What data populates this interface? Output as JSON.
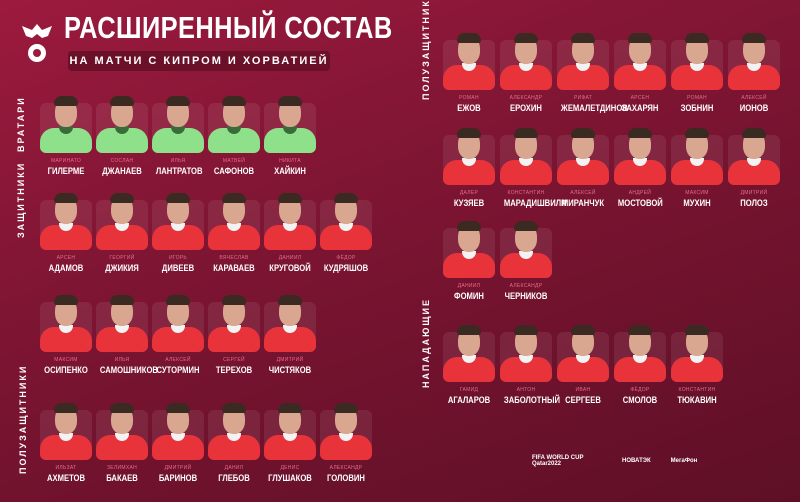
{
  "header": {
    "title": "РАСШИРЕННЫЙ СОСТАВ",
    "subtitle": "НА МАТЧИ С КИПРОМ И ХОРВАТИЕЙ"
  },
  "sections": {
    "goalkeepers": "ВРАТАРИ",
    "defenders": "ЗАЩИТНИКИ",
    "midfielders": "ПОЛУЗАЩИТНИКИ",
    "forwards": "НАПАДАЮЩИЕ"
  },
  "goalkeepers": [
    [
      "МАРИНАТО",
      "ГИЛЕРМЕ"
    ],
    [
      "СОСЛАН",
      "ДЖАНАЕВ"
    ],
    [
      "ИЛЬЯ",
      "ЛАНТРАТОВ"
    ],
    [
      "МАТВЕЙ",
      "САФОНОВ"
    ],
    [
      "НИКИТА",
      "ХАЙКИН"
    ]
  ],
  "defenders": [
    [
      "АРСЕН",
      "АДАМОВ"
    ],
    [
      "ГЕОРГИЙ",
      "ДЖИКИЯ"
    ],
    [
      "ИГОРЬ",
      "ДИВЕЕВ"
    ],
    [
      "ВЯЧЕСЛАВ",
      "КАРАВАЕВ"
    ],
    [
      "ДАНИИЛ",
      "КРУГОВОЙ"
    ],
    [
      "ФЁДОР",
      "КУДРЯШОВ"
    ],
    [
      "МАКСИМ",
      "ОСИПЕНКО"
    ],
    [
      "ИЛЬЯ",
      "САМОШНИКОВ"
    ],
    [
      "АЛЕКСЕЙ",
      "СУТОРМИН"
    ],
    [
      "СЕРГЕЙ",
      "ТЕРЕХОВ"
    ],
    [
      "ДМИТРИЙ",
      "ЧИСТЯКОВ"
    ]
  ],
  "midfielders_left": [
    [
      "ИЛЬЗАТ",
      "АХМЕТОВ"
    ],
    [
      "ЗЕЛИМХАН",
      "БАКАЕВ"
    ],
    [
      "ДМИТРИЙ",
      "БАРИНОВ"
    ],
    [
      "ДАНИЛ",
      "ГЛЕБОВ"
    ],
    [
      "ДЕНИС",
      "ГЛУШАКОВ"
    ],
    [
      "АЛЕКСАНДР",
      "ГОЛОВИН"
    ]
  ],
  "midfielders_right": [
    [
      "РОМАН",
      "ЕЖОВ"
    ],
    [
      "АЛЕКСАНДР",
      "ЕРОХИН"
    ],
    [
      "РИФАТ",
      "ЖЕМАЛЕТДИНОВ"
    ],
    [
      "АРСЕН",
      "ЗАХАРЯН"
    ],
    [
      "РОМАН",
      "ЗОБНИН"
    ],
    [
      "АЛЕКСЕЙ",
      "ИОНОВ"
    ],
    [
      "ДАЛЕР",
      "КУЗЯЕВ"
    ],
    [
      "КОНСТАНТИН",
      "МАРАДИШВИЛИ"
    ],
    [
      "АЛЕКСЕЙ",
      "МИРАНЧУК"
    ],
    [
      "АНДРЕЙ",
      "МОСТОВОЙ"
    ],
    [
      "МАКСИМ",
      "МУХИН"
    ],
    [
      "ДМИТРИЙ",
      "ПОЛОЗ"
    ],
    [
      "ДАНИИЛ",
      "ФОМИН"
    ],
    [
      "АЛЕКСАНДР",
      "ЧЕРНИКОВ"
    ]
  ],
  "forwards": [
    [
      "ГАМИД",
      "АГАЛАРОВ"
    ],
    [
      "АНТОН",
      "ЗАБОЛОТНЫЙ"
    ],
    [
      "ИВАН",
      "СЕРГЕЕВ"
    ],
    [
      "ФЁДОР",
      "СМОЛОВ"
    ],
    [
      "КОНСТАНТИН",
      "ТЮКАВИН"
    ]
  ],
  "partners": {
    "fifa": "FIFA WORLD CUP Qatar2022",
    "novatek": "НОВАТЭК",
    "megafon": "МегаФон"
  }
}
